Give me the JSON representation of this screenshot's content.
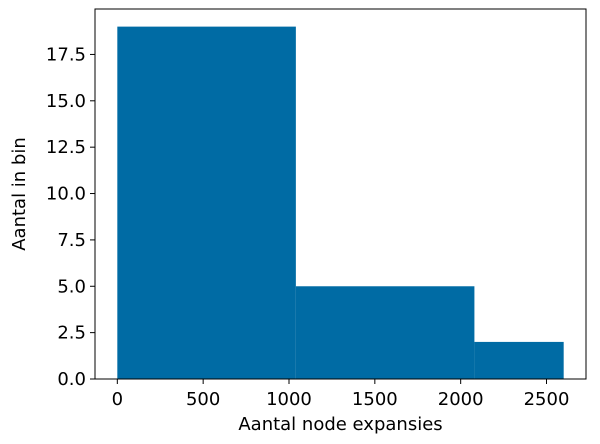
{
  "chart_data": {
    "type": "bar",
    "histogram": true,
    "bins": [
      {
        "x_start": 0,
        "x_end": 1040,
        "count": 19
      },
      {
        "x_start": 1040,
        "x_end": 2080,
        "count": 5
      },
      {
        "x_start": 2080,
        "x_end": 2600,
        "count": 2
      }
    ],
    "xlabel": "Aantal node expansies",
    "ylabel": "Aantal in bin",
    "xlim": [
      -130,
      2730
    ],
    "ylim": [
      0,
      19.95
    ],
    "xticks": [
      0,
      500,
      1000,
      1500,
      2000,
      2500
    ],
    "xtick_labels": [
      "0",
      "500",
      "1000",
      "1500",
      "2000",
      "2500"
    ],
    "yticks": [
      0,
      2.5,
      5,
      7.5,
      10,
      12.5,
      15,
      17.5
    ],
    "ytick_labels": [
      "0.0",
      "2.5",
      "5.0",
      "7.5",
      "10.0",
      "12.5",
      "15.0",
      "17.5"
    ],
    "bar_color": "#006BA4",
    "grid": false,
    "legend": "none"
  }
}
